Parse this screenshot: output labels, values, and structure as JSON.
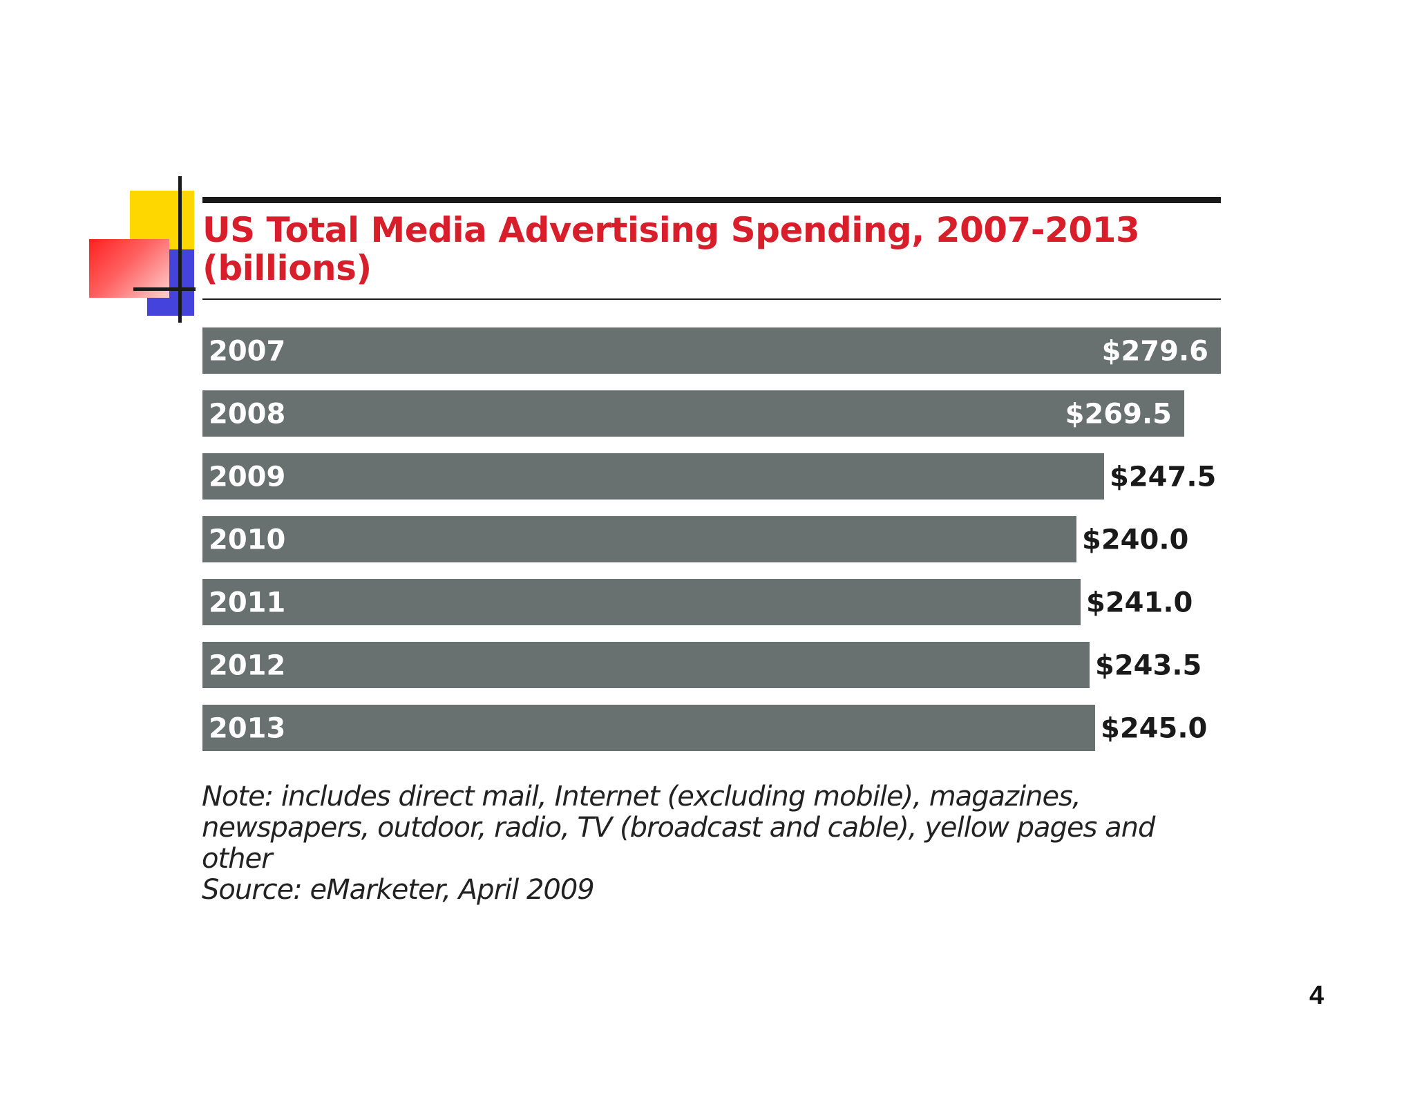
{
  "chart_data": {
    "type": "bar",
    "orientation": "horizontal",
    "title": "US Total Media Advertising Spending, 2007-2013",
    "subtitle": "(billions)",
    "categories": [
      "2007",
      "2008",
      "2009",
      "2010",
      "2011",
      "2012",
      "2013"
    ],
    "values": [
      279.6,
      269.5,
      247.5,
      240.0,
      241.0,
      243.5,
      245.0
    ],
    "value_labels": [
      "$279.6",
      "$269.5",
      "$247.5",
      "$240.0",
      "$241.0",
      "$243.5",
      "$245.0"
    ],
    "xlabel": "",
    "ylabel": "",
    "xlim": [
      0,
      279.6
    ],
    "grid": false,
    "legend": "none",
    "bar_color": "#687070",
    "title_color": "#d81e2a"
  },
  "note": {
    "lines": [
      "Note: includes direct mail, Internet (excluding mobile), magazines,",
      "newspapers, outdoor, radio, TV (broadcast and cable), yellow pages and",
      "other"
    ],
    "source": "Source: eMarketer, April 2009"
  },
  "slide": {
    "page_number": "4"
  }
}
